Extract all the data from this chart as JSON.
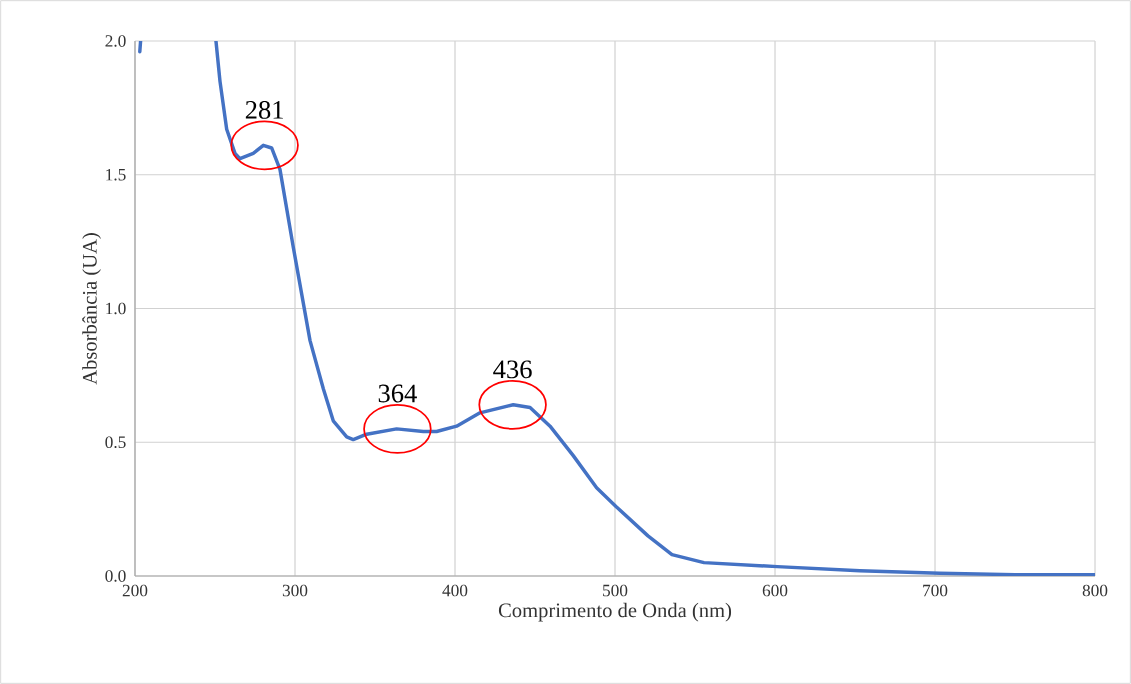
{
  "chart_data": {
    "type": "line",
    "xlabel": "Comprimento de Onda (nm)",
    "ylabel": "Absorbância (UA)",
    "x": [
      203,
      203.5,
      230,
      250.6,
      253.1,
      257.3,
      262.5,
      265.6,
      273.9,
      280.2,
      285.4,
      290.6,
      298.9,
      309.4,
      317.7,
      323.9,
      332.3,
      336.4,
      344.8,
      363.5,
      380.2,
      388.5,
      401,
      415.6,
      436.4,
      446.9,
      459.4,
      473.9,
      488.5,
      500.6,
      520.6,
      535.6,
      555.6,
      601.4,
      653,
      703,
      750,
      800
    ],
    "series": [
      {
        "color": "#4472c4",
        "values": [
          1.96,
          2.0,
          null,
          2.0,
          1.85,
          1.67,
          1.58,
          1.56,
          1.58,
          1.61,
          1.6,
          1.52,
          1.23,
          0.88,
          0.7,
          0.58,
          0.52,
          0.51,
          0.53,
          0.55,
          0.54,
          0.54,
          0.56,
          0.61,
          0.64,
          0.63,
          0.56,
          0.45,
          0.33,
          0.26,
          0.15,
          0.08,
          0.05,
          0.035,
          0.02,
          0.01,
          0.005,
          0.005
        ]
      }
    ],
    "xlim": [
      200,
      800
    ],
    "ylim": [
      0,
      2.0
    ],
    "xticks": [
      200,
      300,
      400,
      500,
      600,
      700,
      800
    ],
    "yticks": [
      {
        "value": 0,
        "label": "0.0"
      },
      {
        "value": 0.5,
        "label": "0.5"
      },
      {
        "value": 1.0,
        "label": "1.0"
      },
      {
        "value": 1.5,
        "label": "1.5"
      },
      {
        "value": 2.0,
        "label": "2.0"
      }
    ],
    "grid": true,
    "annotations": [
      {
        "text": "281",
        "x": 281,
        "y": 1.61
      },
      {
        "text": "364",
        "x": 364,
        "y": 0.55
      },
      {
        "text": "436",
        "x": 436,
        "y": 0.64
      }
    ]
  }
}
